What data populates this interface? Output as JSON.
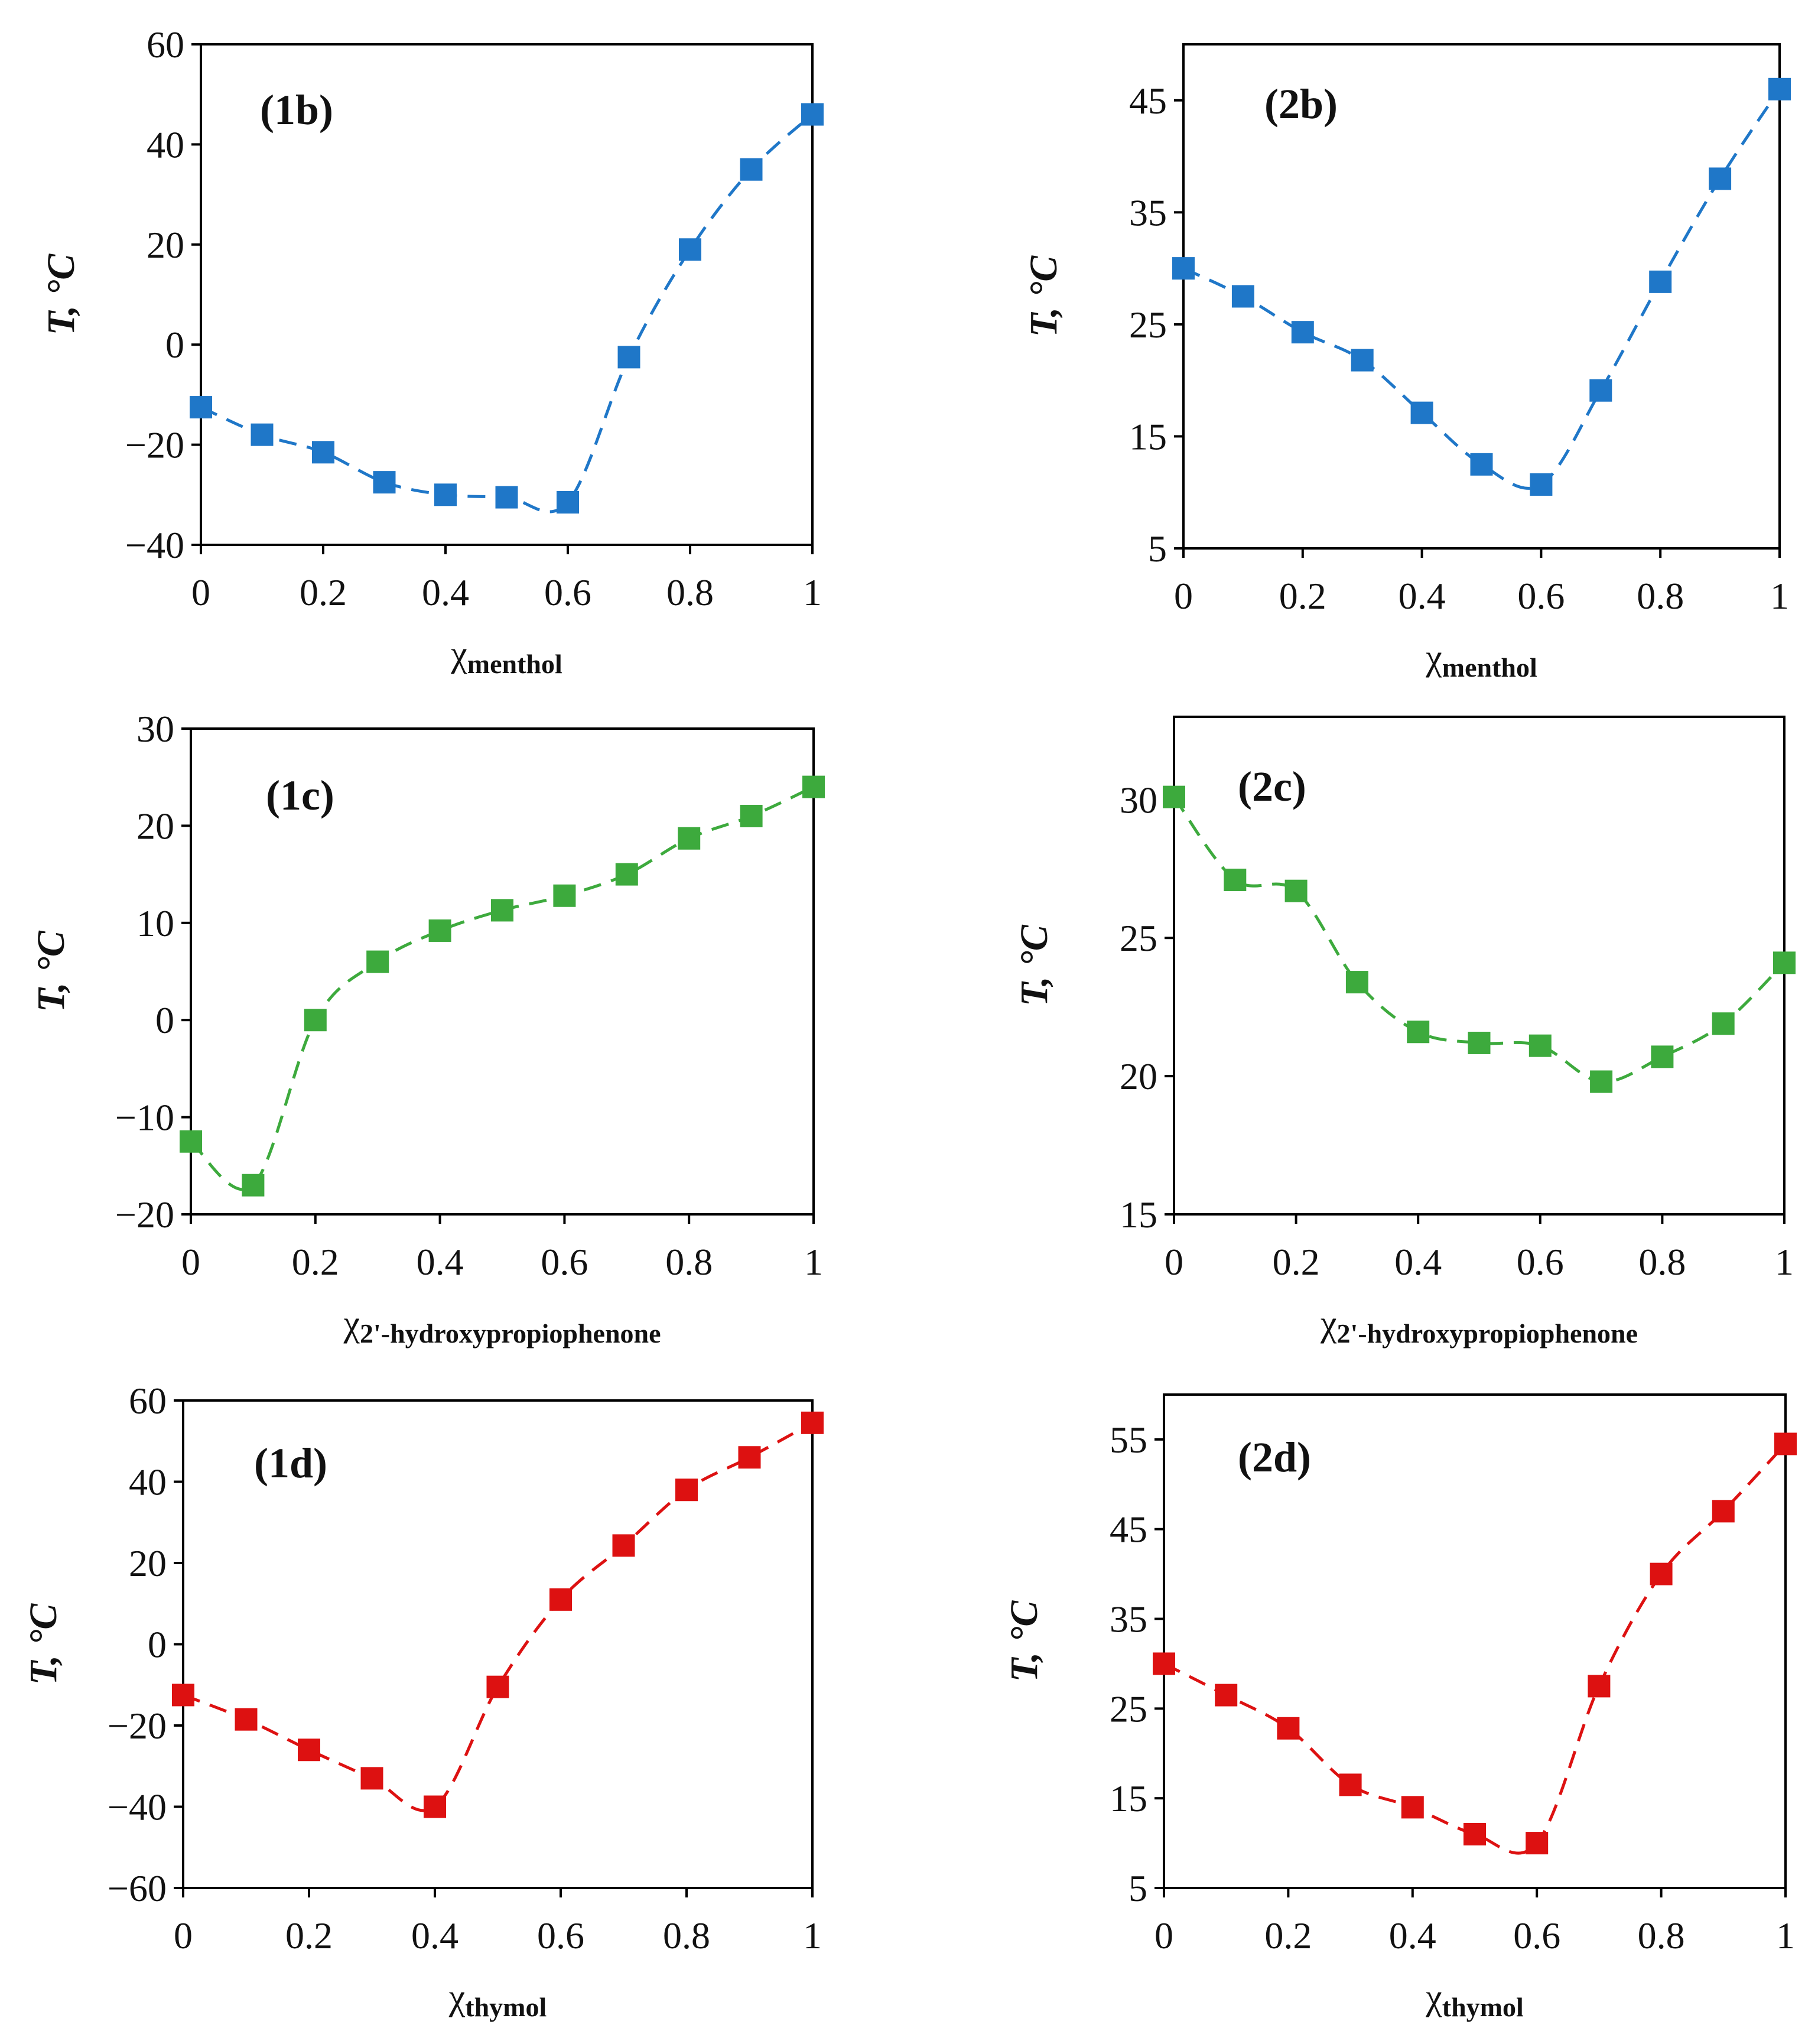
{
  "chart_data": [
    {
      "type": "scatter",
      "panel_label": "(1b)",
      "color": "#1f77c8",
      "ylabel": "T, °C",
      "xlabel": "χ",
      "xlabel_sub": "menthol",
      "xlim": [
        0,
        1
      ],
      "ylim": [
        -40,
        60
      ],
      "xticks": [
        0,
        0.2,
        0.4,
        0.6,
        0.8,
        1
      ],
      "xtick_labels": [
        "0",
        "0.2",
        "0.4",
        "0.6",
        "0.8",
        "1"
      ],
      "yticks": [
        -40,
        -20,
        0,
        20,
        40,
        60
      ],
      "ytick_labels": [
        "−40",
        "−20",
        "0",
        "20",
        "40",
        "60"
      ],
      "series": [
        {
          "x": [
            0,
            0.1,
            0.2,
            0.3,
            0.4,
            0.5,
            0.6,
            0.7,
            0.8,
            0.9,
            1.0
          ],
          "y": [
            -12.5,
            -18,
            -21.5,
            -27.5,
            -30,
            -30.5,
            -31.5,
            -2.5,
            19,
            35,
            46
          ]
        }
      ]
    },
    {
      "type": "scatter",
      "panel_label": "(2b)",
      "color": "#1f77c8",
      "ylabel": "T, °C",
      "xlabel": "χ",
      "xlabel_sub": "menthol",
      "xlim": [
        0,
        1
      ],
      "ylim": [
        5,
        50
      ],
      "xticks": [
        0,
        0.2,
        0.4,
        0.6,
        0.8,
        1
      ],
      "xtick_labels": [
        "0",
        "0.2",
        "0.4",
        "0.6",
        "0.8",
        "1"
      ],
      "yticks": [
        5,
        15,
        25,
        35,
        45
      ],
      "ytick_labels": [
        "5",
        "15",
        "25",
        "35",
        "45"
      ],
      "series": [
        {
          "x": [
            0,
            0.1,
            0.2,
            0.3,
            0.4,
            0.5,
            0.6,
            0.7,
            0.8,
            0.9,
            1.0
          ],
          "y": [
            30,
            27.5,
            24.3,
            21.8,
            17.1,
            12.5,
            10.7,
            19.1,
            28.8,
            38,
            46
          ]
        }
      ]
    },
    {
      "type": "scatter",
      "panel_label": "(1c)",
      "color": "#3daa3d",
      "ylabel": "T, °C",
      "xlabel": "χ",
      "xlabel_sub": "2'-hydroxypropiophenone",
      "xlim": [
        0,
        1
      ],
      "ylim": [
        -20,
        30
      ],
      "xticks": [
        0,
        0.2,
        0.4,
        0.6,
        0.8,
        1
      ],
      "xtick_labels": [
        "0",
        "0.2",
        "0.4",
        "0.6",
        "0.8",
        "1"
      ],
      "yticks": [
        -20,
        -10,
        0,
        10,
        20,
        30
      ],
      "ytick_labels": [
        "−20",
        "−10",
        "0",
        "10",
        "20",
        "30"
      ],
      "series": [
        {
          "x": [
            0,
            0.1,
            0.2,
            0.3,
            0.4,
            0.5,
            0.6,
            0.7,
            0.8,
            0.9,
            1.0
          ],
          "y": [
            -12.5,
            -17,
            0,
            6,
            9.2,
            11.3,
            12.8,
            15,
            18.7,
            21,
            24
          ]
        }
      ]
    },
    {
      "type": "scatter",
      "panel_label": "(2c)",
      "color": "#3daa3d",
      "ylabel": "T, °C",
      "xlabel": "χ",
      "xlabel_sub": "2'-hydroxypropiophenone",
      "xlim": [
        0,
        1
      ],
      "ylim": [
        15,
        33
      ],
      "xticks": [
        0,
        0.2,
        0.4,
        0.6,
        0.8,
        1
      ],
      "xtick_labels": [
        "0",
        "0.2",
        "0.4",
        "0.6",
        "0.8",
        "1"
      ],
      "yticks": [
        15,
        20,
        25,
        30
      ],
      "ytick_labels": [
        "15",
        "20",
        "25",
        "30"
      ],
      "series": [
        {
          "x": [
            0,
            0.1,
            0.2,
            0.3,
            0.4,
            0.5,
            0.6,
            0.7,
            0.8,
            0.9,
            1.0
          ],
          "y": [
            30.1,
            27.1,
            26.7,
            23.4,
            21.6,
            21.2,
            21.1,
            19.8,
            20.7,
            21.9,
            24.1
          ]
        }
      ]
    },
    {
      "type": "scatter",
      "panel_label": "(1d)",
      "color": "#dd1111",
      "ylabel": "T, °C",
      "xlabel": "χ",
      "xlabel_sub": "thymol",
      "xlim": [
        0,
        1
      ],
      "ylim": [
        -60,
        60
      ],
      "xticks": [
        0,
        0.2,
        0.4,
        0.6,
        0.8,
        1
      ],
      "xtick_labels": [
        "0",
        "0.2",
        "0.4",
        "0.6",
        "0.8",
        "1"
      ],
      "yticks": [
        -60,
        -40,
        -20,
        0,
        20,
        40,
        60
      ],
      "ytick_labels": [
        "−60",
        "−40",
        "−20",
        "0",
        "20",
        "40",
        "60"
      ],
      "series": [
        {
          "x": [
            0,
            0.1,
            0.2,
            0.3,
            0.4,
            0.5,
            0.6,
            0.7,
            0.8,
            0.9,
            1.0
          ],
          "y": [
            -12.5,
            -18.5,
            -26,
            -33,
            -40,
            -10.5,
            11,
            24.3,
            38,
            46,
            54.5
          ]
        }
      ]
    },
    {
      "type": "scatter",
      "panel_label": "(2d)",
      "color": "#dd1111",
      "ylabel": "T, °C",
      "xlabel": "χ",
      "xlabel_sub": "thymol",
      "xlim": [
        0,
        1
      ],
      "ylim": [
        5,
        60
      ],
      "xticks": [
        0,
        0.2,
        0.4,
        0.6,
        0.8,
        1
      ],
      "xtick_labels": [
        "0",
        "0.2",
        "0.4",
        "0.6",
        "0.8",
        "1"
      ],
      "yticks": [
        5,
        15,
        25,
        35,
        45,
        55
      ],
      "ytick_labels": [
        "5",
        "15",
        "25",
        "35",
        "45",
        "55"
      ],
      "series": [
        {
          "x": [
            0,
            0.1,
            0.2,
            0.3,
            0.4,
            0.5,
            0.6,
            0.7,
            0.8,
            0.9,
            1.0
          ],
          "y": [
            30,
            26.5,
            22.8,
            16.5,
            14,
            11,
            10,
            27.5,
            40,
            47,
            54.5
          ]
        }
      ]
    }
  ]
}
